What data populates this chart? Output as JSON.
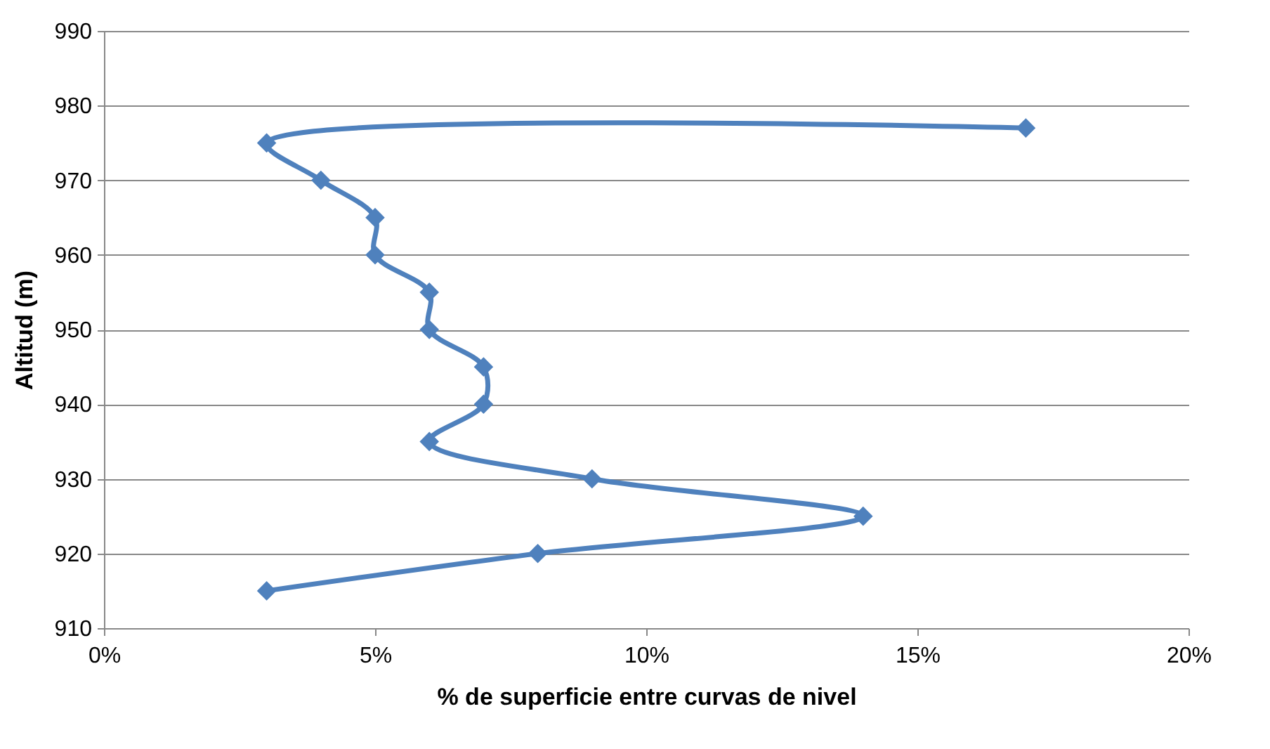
{
  "chart_data": {
    "type": "line",
    "xlabel": "% de superficie entre curvas de nivel",
    "ylabel": "Altitud (m)",
    "x": [
      3,
      8,
      14,
      9,
      6,
      7,
      7,
      6,
      6,
      5,
      5,
      4,
      3,
      17
    ],
    "series": [
      {
        "color": "#4f81bd",
        "values": [
          915,
          920,
          925,
          930,
          935,
          940,
          945,
          950,
          955,
          960,
          965,
          970,
          975,
          977
        ]
      }
    ],
    "xlim": [
      0,
      20
    ],
    "xticks": [
      {
        "value": 0,
        "label": "0%"
      },
      {
        "value": 5,
        "label": "5%"
      },
      {
        "value": 10,
        "label": "10%"
      },
      {
        "value": 15,
        "label": "15%"
      },
      {
        "value": 20,
        "label": "20%"
      }
    ],
    "ylim": [
      910,
      990
    ],
    "yticks": [
      910,
      920,
      930,
      940,
      950,
      960,
      970,
      980,
      990
    ],
    "grid": "y",
    "marker": "diamond"
  }
}
